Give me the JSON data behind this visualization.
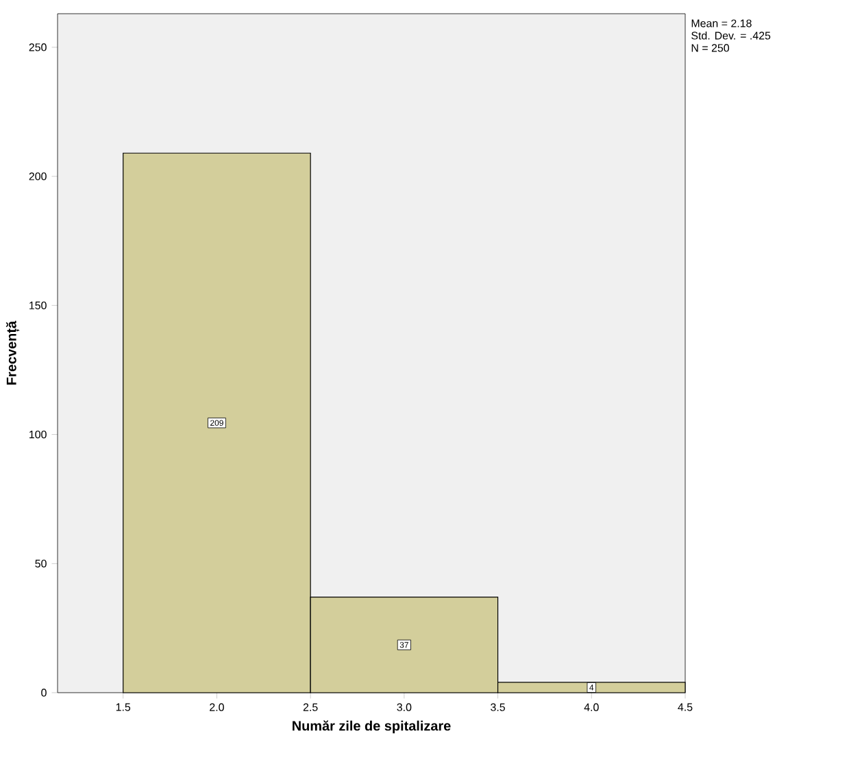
{
  "chart_data": {
    "type": "histogram",
    "xlabel": "Număr zile de spitalizare",
    "ylabel": "Frecvență",
    "bins": [
      1.5,
      2.5,
      3.5,
      4.5
    ],
    "values": [
      209,
      37,
      4
    ],
    "color": "#d3ce9b",
    "data_labels": true,
    "xlim": [
      1.15,
      4.5
    ],
    "ylim": [
      0,
      263
    ],
    "xticks": [
      1.5,
      {
        "value": 2,
        "label": "2.0"
      },
      2.5,
      {
        "value": 3,
        "label": "3.0"
      },
      3.5,
      {
        "value": 4,
        "label": "4.0"
      },
      4.5
    ],
    "yticks": [
      0,
      50,
      100,
      150,
      200,
      250
    ],
    "annotations": [
      "Mean = 2.18",
      "Std. Dev. = .425",
      "N = 250"
    ]
  }
}
